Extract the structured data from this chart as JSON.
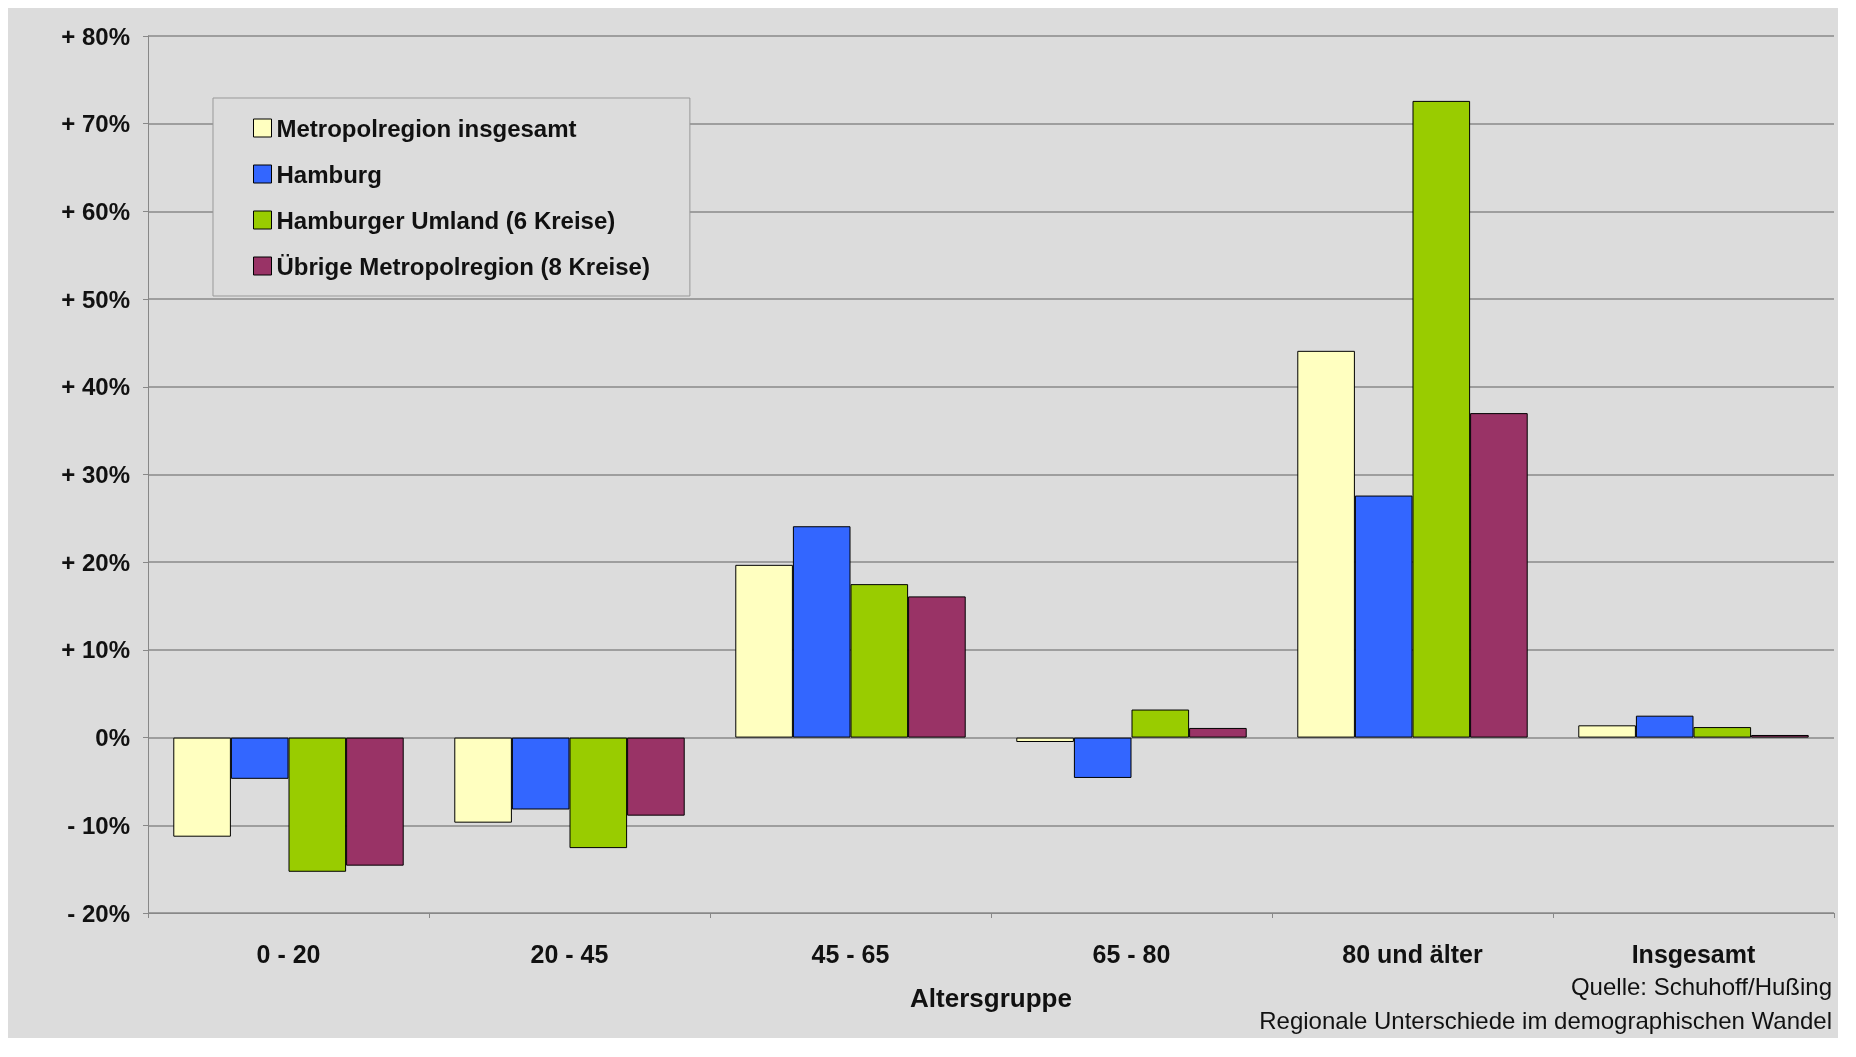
{
  "chart_data": {
    "type": "bar",
    "xlabel": "Altersgruppe",
    "categories": [
      "0 - 20",
      "20 - 45",
      "45 - 65",
      "65 - 80",
      "80 und älter",
      "Insgesamt"
    ],
    "series": [
      {
        "name": "Metropolregion insgesamt",
        "color": "#ffffc0",
        "values": [
          -11.3,
          -9.7,
          19.7,
          -0.5,
          44.1,
          1.4
        ]
      },
      {
        "name": "Hamburg",
        "color": "#3366ff",
        "values": [
          -4.7,
          -8.2,
          24.1,
          -4.6,
          27.6,
          2.5
        ]
      },
      {
        "name": "Hamburger Umland (6 Kreise)",
        "color": "#99cc00",
        "values": [
          -15.3,
          -12.6,
          17.5,
          3.2,
          72.6,
          1.2
        ]
      },
      {
        "name": "Übrige Metropolregion (8 Kreise)",
        "color": "#993366",
        "values": [
          -14.6,
          -8.9,
          16.1,
          1.1,
          37.0,
          0.3
        ]
      }
    ],
    "ylim": [
      -20,
      80
    ],
    "yticks": [
      {
        "value": -20,
        "label": "- 20%"
      },
      {
        "value": -10,
        "label": "- 10%"
      },
      {
        "value": 0,
        "label": "0%"
      },
      {
        "value": 10,
        "label": "+ 10%"
      },
      {
        "value": 20,
        "label": "+ 20%"
      },
      {
        "value": 30,
        "label": "+ 30%"
      },
      {
        "value": 40,
        "label": "+ 40%"
      },
      {
        "value": 50,
        "label": "+ 50%"
      },
      {
        "value": 60,
        "label": "+ 60%"
      },
      {
        "value": 70,
        "label": "+ 70%"
      },
      {
        "value": 80,
        "label": "+ 80%"
      }
    ],
    "grid": "y",
    "legend": "top left",
    "annotations": [
      "Quelle: Schuhoff/Hußing",
      "Regionale Unterschiede im demographischen Wandel"
    ]
  }
}
